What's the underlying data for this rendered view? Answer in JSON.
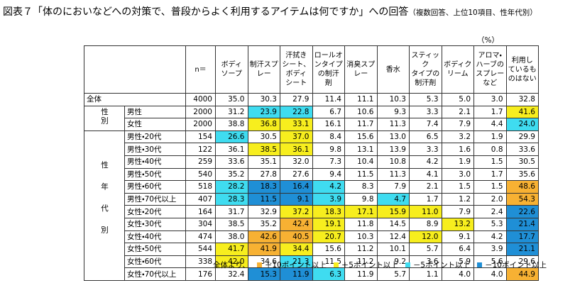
{
  "header": {
    "title": "図表７「体のにおいなどへの対策で、普段からよく利用するアイテムは何ですか」への回答",
    "subtitle": "（複数回答、上位10項目、性年代別）",
    "unit": "（%）"
  },
  "table": {
    "columns": [
      "n＝",
      "ボディ\nソープ",
      "制汗スプ\nレー",
      "汗拭き\nシート、\nボディ\nシート",
      "ロールオ\nンタイプ\nの制汗\n剤",
      "消臭スプ\nレー",
      "香水",
      "スティック\nタイプの\n制汗剤",
      "ボディク\nリーム",
      "アロマ・\nハーブの\nスプレー\nなど",
      "利用し\nているも\nのはない"
    ],
    "total": {
      "label": "全体",
      "n": 4000,
      "values": [
        "35.0",
        "30.3",
        "27.9",
        "11.4",
        "11.1",
        "10.3",
        "5.3",
        "5.0",
        "3.0",
        "32.8"
      ],
      "colors": [
        null,
        null,
        null,
        null,
        null,
        null,
        null,
        null,
        null,
        null
      ]
    },
    "groups": [
      {
        "label": "性別",
        "rows": [
          {
            "label": "男性",
            "n": 2000,
            "values": [
              "31.2",
              "23.9",
              "22.8",
              "6.7",
              "10.6",
              "9.3",
              "3.3",
              "2.1",
              "1.7",
              "41.6"
            ],
            "colors": [
              null,
              "#3fdcf0",
              "#3fdcf0",
              null,
              null,
              null,
              null,
              null,
              null,
              "#f7ee1e"
            ]
          },
          {
            "label": "女性",
            "n": 2000,
            "values": [
              "38.8",
              "36.8",
              "33.1",
              "16.1",
              "11.7",
              "11.3",
              "7.4",
              "7.9",
              "4.4",
              "24.0"
            ],
            "colors": [
              null,
              "#f7ee1e",
              "#f7ee1e",
              null,
              null,
              null,
              null,
              null,
              null,
              "#3fdcf0"
            ]
          }
        ]
      },
      {
        "label": "性年代別",
        "rows": [
          {
            "label": "男性・20代",
            "n": 154,
            "values": [
              "26.6",
              "30.5",
              "37.0",
              "8.4",
              "15.6",
              "13.0",
              "6.5",
              "3.2",
              "1.9",
              "29.9"
            ],
            "colors": [
              "#3fdcf0",
              null,
              "#f7ee1e",
              null,
              null,
              null,
              null,
              null,
              null,
              null
            ]
          },
          {
            "label": "男性・30代",
            "n": 122,
            "values": [
              "36.1",
              "38.5",
              "36.1",
              "9.8",
              "13.1",
              "13.9",
              "3.3",
              "1.6",
              "0.8",
              "33.6"
            ],
            "colors": [
              null,
              "#f7ee1e",
              "#f7ee1e",
              null,
              null,
              null,
              null,
              null,
              null,
              null
            ]
          },
          {
            "label": "男性・40代",
            "n": 259,
            "values": [
              "33.6",
              "35.1",
              "32.0",
              "7.3",
              "10.4",
              "10.8",
              "4.2",
              "1.9",
              "1.5",
              "30.5"
            ],
            "colors": [
              null,
              null,
              null,
              null,
              null,
              null,
              null,
              null,
              null,
              null
            ]
          },
          {
            "label": "男性・50代",
            "n": 540,
            "values": [
              "35.2",
              "27.8",
              "27.6",
              "9.4",
              "11.5",
              "11.3",
              "4.1",
              "3.0",
              "1.7",
              "35.6"
            ],
            "colors": [
              null,
              null,
              null,
              null,
              null,
              null,
              null,
              null,
              null,
              null
            ]
          },
          {
            "label": "男性・60代",
            "n": 518,
            "values": [
              "28.2",
              "18.3",
              "16.4",
              "4.2",
              "8.3",
              "7.9",
              "2.1",
              "1.5",
              "1.5",
              "48.6"
            ],
            "colors": [
              "#3fdcf0",
              "#1f8fd6",
              "#1f8fd6",
              "#3fdcf0",
              null,
              null,
              null,
              null,
              null,
              "#f7b133"
            ]
          },
          {
            "label": "男性・70代以上",
            "n": 407,
            "values": [
              "28.3",
              "11.5",
              "9.1",
              "3.9",
              "9.8",
              "4.7",
              "1.7",
              "1.2",
              "2.0",
              "54.3"
            ],
            "colors": [
              "#3fdcf0",
              "#1f8fd6",
              "#1f8fd6",
              "#3fdcf0",
              null,
              "#3fdcf0",
              null,
              null,
              null,
              "#f7b133"
            ]
          },
          {
            "label": "女性・20代",
            "n": 164,
            "values": [
              "31.7",
              "32.9",
              "37.2",
              "18.3",
              "17.1",
              "15.9",
              "11.0",
              "7.9",
              "2.4",
              "22.6"
            ],
            "colors": [
              null,
              null,
              "#f7ee1e",
              "#f7ee1e",
              "#f7ee1e",
              "#f7ee1e",
              "#f7ee1e",
              null,
              null,
              "#1f8fd6"
            ]
          },
          {
            "label": "女性・30代",
            "n": 304,
            "values": [
              "38.5",
              "35.2",
              "42.4",
              "19.1",
              "11.8",
              "14.5",
              "8.9",
              "13.2",
              "5.3",
              "21.4"
            ],
            "colors": [
              null,
              null,
              "#f7b133",
              "#f7ee1e",
              null,
              null,
              null,
              "#f7ee1e",
              null,
              "#1f8fd6"
            ]
          },
          {
            "label": "女性・40代",
            "n": 474,
            "values": [
              "38.0",
              "42.6",
              "40.5",
              "20.7",
              "10.3",
              "12.4",
              "12.0",
              "9.1",
              "4.2",
              "17.7"
            ],
            "colors": [
              null,
              "#f7b133",
              "#f7b133",
              "#f7ee1e",
              null,
              null,
              "#f7ee1e",
              null,
              null,
              "#1f8fd6"
            ]
          },
          {
            "label": "女性・50代",
            "n": 544,
            "values": [
              "41.7",
              "41.9",
              "34.4",
              "15.6",
              "11.2",
              "10.1",
              "5.7",
              "6.4",
              "3.9",
              "21.1"
            ],
            "colors": [
              "#f7ee1e",
              "#f7b133",
              "#f7ee1e",
              null,
              null,
              null,
              null,
              null,
              null,
              "#1f8fd6"
            ]
          },
          {
            "label": "女性・60代",
            "n": 338,
            "values": [
              "42.0",
              "34.6",
              "21.3",
              "11.5",
              "11.2",
              "9.2",
              "3.6",
              "5.9",
              "5.6",
              "29.6"
            ],
            "colors": [
              "#f7ee1e",
              null,
              "#3fdcf0",
              null,
              null,
              null,
              null,
              null,
              null,
              null
            ]
          },
          {
            "label": "女性・70代以上",
            "n": 176,
            "values": [
              "32.4",
              "15.3",
              "11.9",
              "6.3",
              "11.9",
              "5.7",
              "1.1",
              "4.0",
              "4.0",
              "44.9"
            ],
            "colors": [
              null,
              "#1f8fd6",
              "#1f8fd6",
              "#3fdcf0",
              null,
              null,
              null,
              null,
              null,
              "#f7b133"
            ]
          }
        ]
      }
    ]
  },
  "legend": {
    "intro": "全体より、",
    "items": [
      {
        "label": "＋10ポイント以上",
        "color": "#f7b133"
      },
      {
        "label": "＋5ポイント以上",
        "color": "#f7ee1e"
      },
      {
        "label": "－5ポイント以上",
        "color": "#3fdcf0"
      },
      {
        "label": "－10ポイント以上",
        "color": "#1f8fd6"
      }
    ]
  }
}
